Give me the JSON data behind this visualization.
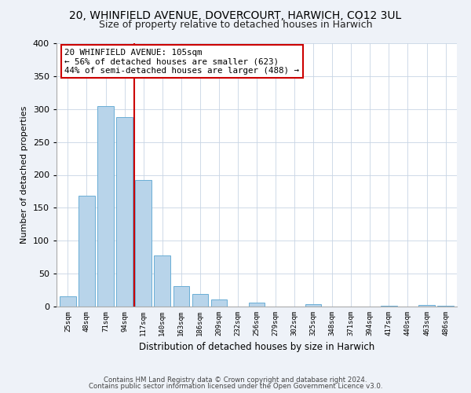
{
  "title": "20, WHINFIELD AVENUE, DOVERCOURT, HARWICH, CO12 3UL",
  "subtitle": "Size of property relative to detached houses in Harwich",
  "xlabel": "Distribution of detached houses by size in Harwich",
  "ylabel": "Number of detached properties",
  "bar_color": "#b8d4ea",
  "bar_edge_color": "#6aaed6",
  "categories": [
    "25sqm",
    "48sqm",
    "71sqm",
    "94sqm",
    "117sqm",
    "140sqm",
    "163sqm",
    "186sqm",
    "209sqm",
    "232sqm",
    "256sqm",
    "279sqm",
    "302sqm",
    "325sqm",
    "348sqm",
    "371sqm",
    "394sqm",
    "417sqm",
    "440sqm",
    "463sqm",
    "486sqm"
  ],
  "values": [
    16,
    168,
    305,
    288,
    192,
    78,
    31,
    19,
    11,
    0,
    6,
    0,
    0,
    3,
    0,
    0,
    0,
    1,
    0,
    2,
    1
  ],
  "vline_x": 3.5,
  "vline_color": "#cc0000",
  "annotation_title": "20 WHINFIELD AVENUE: 105sqm",
  "annotation_line1": "← 56% of detached houses are smaller (623)",
  "annotation_line2": "44% of semi-detached houses are larger (488) →",
  "ylim": [
    0,
    400
  ],
  "yticks": [
    0,
    50,
    100,
    150,
    200,
    250,
    300,
    350,
    400
  ],
  "footer_line1": "Contains HM Land Registry data © Crown copyright and database right 2024.",
  "footer_line2": "Contains public sector information licensed under the Open Government Licence v3.0.",
  "background_color": "#eef2f8",
  "plot_background": "#ffffff",
  "grid_color": "#c8d4e4",
  "title_fontsize": 10,
  "subtitle_fontsize": 9
}
